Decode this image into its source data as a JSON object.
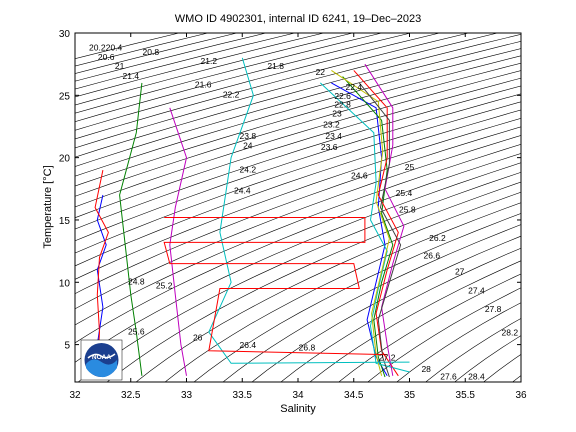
{
  "chart_data": {
    "type": "scatter",
    "subtype": "temperature-salinity diagram with potential density (sigma-theta) contours",
    "title": "WMO ID 4902301, internal ID 6241, 19–Dec–2023",
    "xlabel": "Salinity",
    "ylabel": "Temperature [°C]",
    "xlim": [
      32,
      36
    ],
    "ylim": [
      2,
      30
    ],
    "xticks": [
      "32",
      "32.5",
      "33",
      "33.5",
      "34",
      "34.5",
      "35",
      "35.5",
      "36"
    ],
    "yticks": [
      "5",
      "10",
      "15",
      "20",
      "25",
      "30"
    ],
    "grid": false,
    "legend": "none",
    "logo": "NOAA",
    "isopycnal_labels": [
      {
        "text": "20.2",
        "s": 32.2,
        "t": 28.8
      },
      {
        "text": "20.4",
        "s": 32.35,
        "t": 28.8
      },
      {
        "text": "20.6",
        "s": 32.28,
        "t": 28.0
      },
      {
        "text": "20.8",
        "s": 32.68,
        "t": 28.4
      },
      {
        "text": "21",
        "s": 32.4,
        "t": 27.3
      },
      {
        "text": "21.2",
        "s": 33.2,
        "t": 27.7
      },
      {
        "text": "21.4",
        "s": 32.5,
        "t": 26.5
      },
      {
        "text": "21.6",
        "s": 33.15,
        "t": 25.8
      },
      {
        "text": "21.8",
        "s": 33.8,
        "t": 27.3
      },
      {
        "text": "22",
        "s": 34.2,
        "t": 26.8
      },
      {
        "text": "22.2",
        "s": 33.4,
        "t": 25.0
      },
      {
        "text": "22.4",
        "s": 34.5,
        "t": 25.6
      },
      {
        "text": "22.6",
        "s": 34.4,
        "t": 24.9
      },
      {
        "text": "22.8",
        "s": 34.4,
        "t": 24.2
      },
      {
        "text": "23",
        "s": 34.35,
        "t": 23.5
      },
      {
        "text": "23.2",
        "s": 34.3,
        "t": 22.6
      },
      {
        "text": "23.4",
        "s": 34.32,
        "t": 21.7
      },
      {
        "text": "23.6",
        "s": 34.28,
        "t": 20.8
      },
      {
        "text": "23.8",
        "s": 33.55,
        "t": 21.7
      },
      {
        "text": "24",
        "s": 33.55,
        "t": 20.9
      },
      {
        "text": "24.2",
        "s": 33.55,
        "t": 19.0
      },
      {
        "text": "24.4",
        "s": 33.5,
        "t": 17.3
      },
      {
        "text": "24.6",
        "s": 34.55,
        "t": 18.5
      },
      {
        "text": "24.8",
        "s": 32.55,
        "t": 10.0
      },
      {
        "text": "25",
        "s": 35.0,
        "t": 19.2
      },
      {
        "text": "25.2",
        "s": 32.8,
        "t": 9.7
      },
      {
        "text": "25.4",
        "s": 34.95,
        "t": 17.1
      },
      {
        "text": "25.6",
        "s": 32.55,
        "t": 6.0
      },
      {
        "text": "25.8",
        "s": 34.98,
        "t": 15.8
      },
      {
        "text": "26",
        "s": 33.1,
        "t": 5.5
      },
      {
        "text": "26.2",
        "s": 35.25,
        "t": 13.5
      },
      {
        "text": "26.4",
        "s": 33.55,
        "t": 4.9
      },
      {
        "text": "26.6",
        "s": 35.2,
        "t": 12.1
      },
      {
        "text": "26.8",
        "s": 34.08,
        "t": 4.7
      },
      {
        "text": "27",
        "s": 35.45,
        "t": 10.8
      },
      {
        "text": "27.2",
        "s": 34.8,
        "t": 3.9
      },
      {
        "text": "27.4",
        "s": 35.6,
        "t": 9.3
      },
      {
        "text": "27.6",
        "s": 35.35,
        "t": 2.4
      },
      {
        "text": "27.8",
        "s": 35.75,
        "t": 7.8
      },
      {
        "text": "28",
        "s": 35.15,
        "t": 3.0
      },
      {
        "text": "28.2",
        "s": 35.9,
        "t": 5.9
      },
      {
        "text": "28.4",
        "s": 35.6,
        "t": 2.4
      },
      {
        "text": "28.6",
        "s": 36.0,
        "t": 3.3
      }
    ],
    "series": [
      {
        "color": "#0000ff",
        "points": [
          [
            34.3,
            26
          ],
          [
            34.7,
            24
          ],
          [
            34.75,
            20
          ],
          [
            34.72,
            16
          ],
          [
            34.78,
            13
          ],
          [
            34.7,
            10
          ],
          [
            34.62,
            7
          ],
          [
            34.7,
            4
          ],
          [
            34.8,
            2.5
          ]
        ]
      },
      {
        "color": "#008000",
        "points": [
          [
            34.4,
            26.5
          ],
          [
            34.75,
            23
          ],
          [
            34.8,
            19
          ],
          [
            34.75,
            15.5
          ],
          [
            34.85,
            13
          ],
          [
            34.75,
            10
          ],
          [
            34.68,
            7
          ],
          [
            34.72,
            4
          ],
          [
            34.78,
            2.4
          ]
        ]
      },
      {
        "color": "#ff0000",
        "points": [
          [
            34.5,
            27
          ],
          [
            34.8,
            24
          ],
          [
            34.8,
            20
          ],
          [
            34.72,
            17
          ],
          [
            34.9,
            14
          ],
          [
            34.8,
            11
          ],
          [
            34.7,
            7.5
          ],
          [
            34.75,
            4.5
          ],
          [
            34.9,
            2.5
          ]
        ]
      },
      {
        "color": "#00bfbf",
        "points": [
          [
            34.2,
            26
          ],
          [
            34.68,
            22
          ],
          [
            34.7,
            18
          ],
          [
            34.65,
            15
          ],
          [
            34.8,
            12.5
          ],
          [
            34.72,
            9.5
          ],
          [
            34.65,
            6.5
          ],
          [
            34.7,
            3.5
          ],
          [
            35.0,
            2.8
          ]
        ]
      },
      {
        "color": "#bf00bf",
        "points": [
          [
            34.6,
            27.5
          ],
          [
            34.85,
            24
          ],
          [
            34.85,
            21
          ],
          [
            34.78,
            17.5
          ],
          [
            34.95,
            14.5
          ],
          [
            34.85,
            11.5
          ],
          [
            34.75,
            8
          ],
          [
            34.8,
            5
          ],
          [
            34.85,
            2.5
          ]
        ]
      },
      {
        "color": "#bfbf00",
        "points": [
          [
            34.3,
            27
          ],
          [
            34.72,
            24.5
          ],
          [
            34.76,
            20.5
          ],
          [
            34.7,
            16.5
          ],
          [
            34.82,
            13.5
          ],
          [
            34.74,
            10.5
          ],
          [
            34.66,
            7.5
          ],
          [
            34.7,
            4.2
          ],
          [
            34.75,
            2.5
          ]
        ]
      },
      {
        "color": "#404040",
        "points": [
          [
            34.55,
            26
          ],
          [
            34.82,
            23
          ],
          [
            34.82,
            19.5
          ],
          [
            34.74,
            16
          ],
          [
            34.92,
            13
          ],
          [
            34.82,
            10
          ],
          [
            34.72,
            7
          ],
          [
            34.76,
            4
          ],
          [
            34.82,
            2.4
          ]
        ]
      },
      {
        "color": "#0000ff",
        "points": [
          [
            32.25,
            17
          ],
          [
            32.2,
            15
          ],
          [
            32.28,
            13
          ],
          [
            32.2,
            11
          ],
          [
            32.25,
            8
          ],
          [
            32.2,
            5
          ],
          [
            32.25,
            3.3
          ]
        ]
      },
      {
        "color": "#ff0000",
        "points": [
          [
            32.25,
            19
          ],
          [
            32.18,
            16
          ],
          [
            32.3,
            14
          ],
          [
            32.22,
            12
          ],
          [
            32.2,
            9
          ],
          [
            32.22,
            6
          ],
          [
            32.2,
            3
          ]
        ]
      },
      {
        "color": "#008000",
        "points": [
          [
            32.6,
            26
          ],
          [
            32.55,
            22
          ],
          [
            32.4,
            17
          ],
          [
            32.45,
            13
          ],
          [
            32.5,
            9
          ],
          [
            32.55,
            6
          ],
          [
            32.6,
            2.5
          ]
        ]
      },
      {
        "color": "#bf00bf",
        "points": [
          [
            32.85,
            24
          ],
          [
            33.0,
            20
          ],
          [
            32.9,
            16
          ],
          [
            32.85,
            13
          ],
          [
            32.9,
            9
          ],
          [
            32.95,
            5
          ],
          [
            33.0,
            2.5
          ]
        ]
      },
      {
        "color": "#00bfbf",
        "points": [
          [
            33.5,
            28
          ],
          [
            33.6,
            25
          ],
          [
            33.4,
            20
          ],
          [
            33.3,
            14
          ],
          [
            33.4,
            10
          ],
          [
            33.2,
            6
          ],
          [
            33.4,
            3.5
          ],
          [
            35.0,
            3.6
          ]
        ]
      },
      {
        "color": "#ff0000",
        "points": [
          [
            32.8,
            15.2
          ],
          [
            34.6,
            15.2
          ],
          [
            34.6,
            13.2
          ],
          [
            32.8,
            13.2
          ],
          [
            32.85,
            11.5
          ],
          [
            34.5,
            11.5
          ],
          [
            34.55,
            9.5
          ],
          [
            33.3,
            9.5
          ],
          [
            33.2,
            4.5
          ],
          [
            34.8,
            4.2
          ]
        ]
      }
    ]
  }
}
